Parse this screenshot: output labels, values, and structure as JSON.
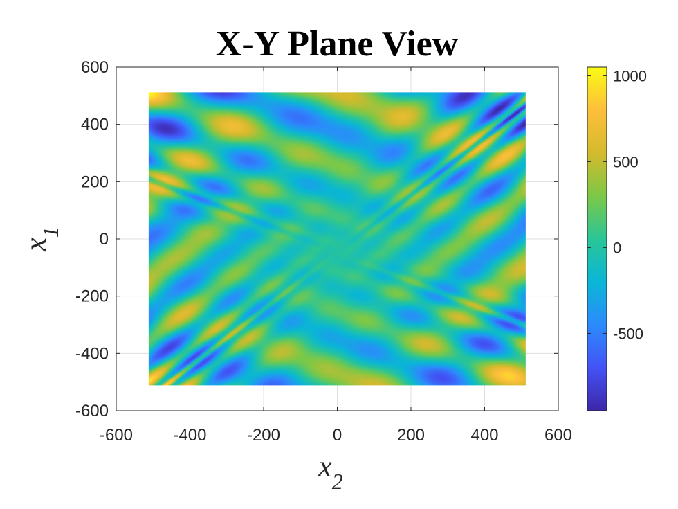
{
  "chart_data": {
    "type": "heatmap",
    "title": "X-Y Plane View",
    "xlabel": "x",
    "xlabel_sub": "2",
    "ylabel": "x",
    "ylabel_sub": "1",
    "xlim": [
      -600,
      600
    ],
    "ylim": [
      -600,
      600
    ],
    "xticks": [
      -600,
      -400,
      -200,
      0,
      200,
      400,
      600
    ],
    "yticks": [
      -600,
      -400,
      -200,
      0,
      200,
      400,
      600
    ],
    "data_extent": {
      "x": [
        -512,
        512
      ],
      "y": [
        -512,
        512
      ]
    },
    "grid": true,
    "colormap": "parula",
    "colorbar": {
      "range": [
        -950,
        1050
      ],
      "ticks": [
        -500,
        0,
        500,
        1000
      ],
      "position": "right"
    },
    "surface": "z = -(x1 + 47) * sin(sqrt(|x1 + x2/2 + 47|)) - x2 * sin(sqrt(|x2 - (x1 + 47)|))"
  }
}
